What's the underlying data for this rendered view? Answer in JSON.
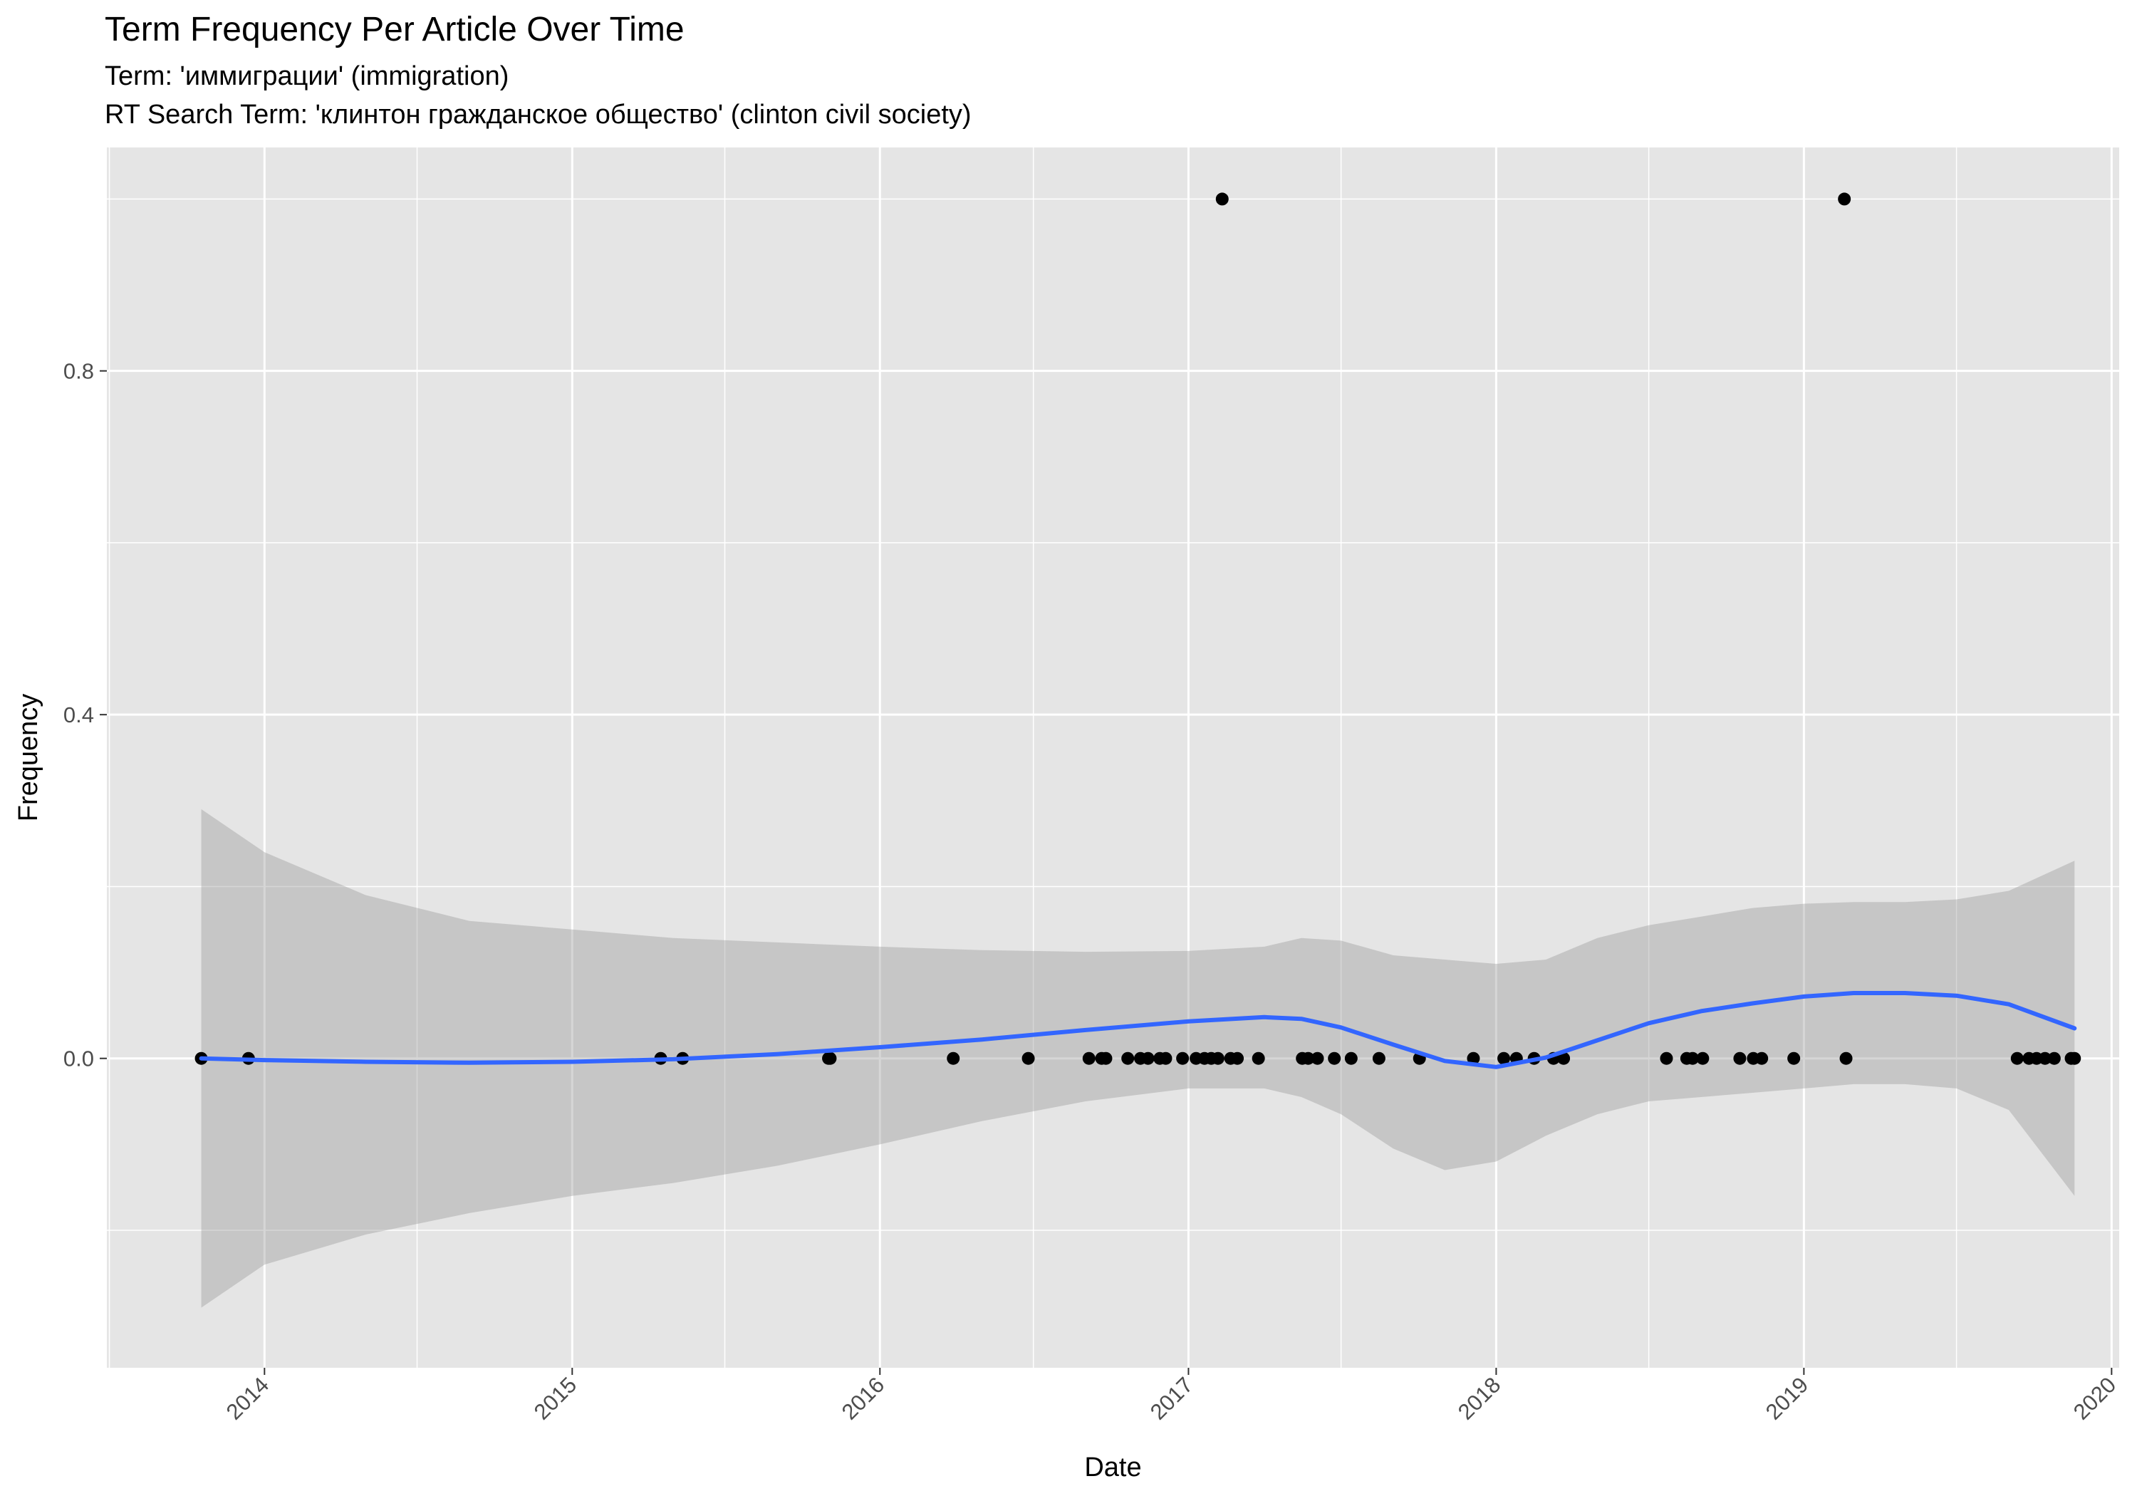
{
  "chart_data": {
    "type": "scatter",
    "title": "Term Frequency Per Article Over Time",
    "subtitle_lines": [
      "Term: 'иммиграции' (immigration)",
      "RT Search Term: 'клинтон гражданское общество' (clinton civil society)"
    ],
    "xlabel": "Date",
    "ylabel": "Frequency",
    "xlim": [
      "2013-06-28",
      "2020-01-10"
    ],
    "ylim": [
      -0.36,
      1.06
    ],
    "x_ticks": [
      "2014",
      "2015",
      "2016",
      "2017",
      "2018",
      "2019",
      "2020"
    ],
    "y_ticks": [
      "0.0",
      "0.4",
      "0.8"
    ],
    "grid": true,
    "legend": "none",
    "points": [
      {
        "x": "2013-10-18",
        "y": 0
      },
      {
        "x": "2013-12-13",
        "y": 0
      },
      {
        "x": "2015-04-16",
        "y": 0
      },
      {
        "x": "2015-05-12",
        "y": 0
      },
      {
        "x": "2015-11-01",
        "y": 0
      },
      {
        "x": "2015-11-03",
        "y": 0
      },
      {
        "x": "2016-03-28",
        "y": 0
      },
      {
        "x": "2016-06-25",
        "y": 0
      },
      {
        "x": "2016-09-05",
        "y": 0
      },
      {
        "x": "2016-09-20",
        "y": 0
      },
      {
        "x": "2016-09-25",
        "y": 0
      },
      {
        "x": "2016-10-21",
        "y": 0
      },
      {
        "x": "2016-11-05",
        "y": 0
      },
      {
        "x": "2016-11-14",
        "y": 0
      },
      {
        "x": "2016-11-28",
        "y": 0
      },
      {
        "x": "2016-12-05",
        "y": 0
      },
      {
        "x": "2016-12-25",
        "y": 0
      },
      {
        "x": "2017-01-10",
        "y": 0
      },
      {
        "x": "2017-01-20",
        "y": 0
      },
      {
        "x": "2017-01-28",
        "y": 0
      },
      {
        "x": "2017-02-05",
        "y": 0
      },
      {
        "x": "2017-02-20",
        "y": 0
      },
      {
        "x": "2017-02-28",
        "y": 0
      },
      {
        "x": "2017-03-25",
        "y": 0
      },
      {
        "x": "2017-05-16",
        "y": 0
      },
      {
        "x": "2017-05-23",
        "y": 0
      },
      {
        "x": "2017-06-03",
        "y": 0
      },
      {
        "x": "2017-06-23",
        "y": 0
      },
      {
        "x": "2017-07-13",
        "y": 0
      },
      {
        "x": "2017-08-15",
        "y": 0
      },
      {
        "x": "2017-10-02",
        "y": 0
      },
      {
        "x": "2017-12-05",
        "y": 0
      },
      {
        "x": "2018-01-10",
        "y": 0
      },
      {
        "x": "2018-01-25",
        "y": 0
      },
      {
        "x": "2018-02-15",
        "y": 0
      },
      {
        "x": "2018-03-10",
        "y": 0
      },
      {
        "x": "2018-03-22",
        "y": 0
      },
      {
        "x": "2018-07-22",
        "y": 0
      },
      {
        "x": "2018-08-15",
        "y": 0
      },
      {
        "x": "2018-08-22",
        "y": 0
      },
      {
        "x": "2018-09-03",
        "y": 0
      },
      {
        "x": "2018-10-17",
        "y": 0
      },
      {
        "x": "2018-11-02",
        "y": 0
      },
      {
        "x": "2018-11-12",
        "y": 0
      },
      {
        "x": "2018-12-20",
        "y": 0
      },
      {
        "x": "2019-02-20",
        "y": 0
      },
      {
        "x": "2019-09-11",
        "y": 0
      },
      {
        "x": "2019-09-25",
        "y": 0
      },
      {
        "x": "2019-10-04",
        "y": 0
      },
      {
        "x": "2019-10-14",
        "y": 0
      },
      {
        "x": "2019-10-25",
        "y": 0
      },
      {
        "x": "2019-11-14",
        "y": 0
      },
      {
        "x": "2019-11-18",
        "y": 0
      },
      {
        "x": "2017-02-10",
        "y": 1
      },
      {
        "x": "2019-02-18",
        "y": 1
      }
    ],
    "smooth": {
      "x": [
        "2013-10-18",
        "2014-01-01",
        "2014-05-01",
        "2014-09-01",
        "2015-01-01",
        "2015-05-01",
        "2015-09-01",
        "2016-01-01",
        "2016-05-01",
        "2016-09-01",
        "2017-01-01",
        "2017-04-01",
        "2017-05-15",
        "2017-07-01",
        "2017-09-01",
        "2017-11-01",
        "2018-01-01",
        "2018-03-01",
        "2018-05-01",
        "2018-07-01",
        "2018-09-01",
        "2018-11-01",
        "2019-01-01",
        "2019-03-01",
        "2019-05-01",
        "2019-07-01",
        "2019-09-01",
        "2019-11-18"
      ],
      "y": [
        0.0,
        -0.002,
        -0.004,
        -0.005,
        -0.004,
        -0.001,
        0.005,
        0.013,
        0.022,
        0.033,
        0.043,
        0.048,
        0.046,
        0.036,
        0.016,
        -0.003,
        -0.01,
        0.001,
        0.021,
        0.041,
        0.055,
        0.064,
        0.072,
        0.076,
        0.076,
        0.073,
        0.063,
        0.035
      ],
      "lower": [
        -0.29,
        -0.24,
        -0.205,
        -0.18,
        -0.16,
        -0.145,
        -0.125,
        -0.1,
        -0.073,
        -0.05,
        -0.035,
        -0.035,
        -0.045,
        -0.065,
        -0.105,
        -0.13,
        -0.12,
        -0.09,
        -0.065,
        -0.05,
        -0.045,
        -0.04,
        -0.035,
        -0.03,
        -0.03,
        -0.035,
        -0.06,
        -0.16
      ],
      "upper": [
        0.29,
        0.24,
        0.19,
        0.16,
        0.15,
        0.14,
        0.135,
        0.13,
        0.126,
        0.124,
        0.125,
        0.13,
        0.14,
        0.137,
        0.12,
        0.115,
        0.11,
        0.115,
        0.14,
        0.155,
        0.165,
        0.175,
        0.18,
        0.182,
        0.182,
        0.185,
        0.195,
        0.23
      ]
    },
    "colors": {
      "panel": "#e5e5e5",
      "grid_major": "#ffffff",
      "points": "#000000",
      "smooth_line": "#3366ff",
      "ribbon": "#999999"
    }
  }
}
